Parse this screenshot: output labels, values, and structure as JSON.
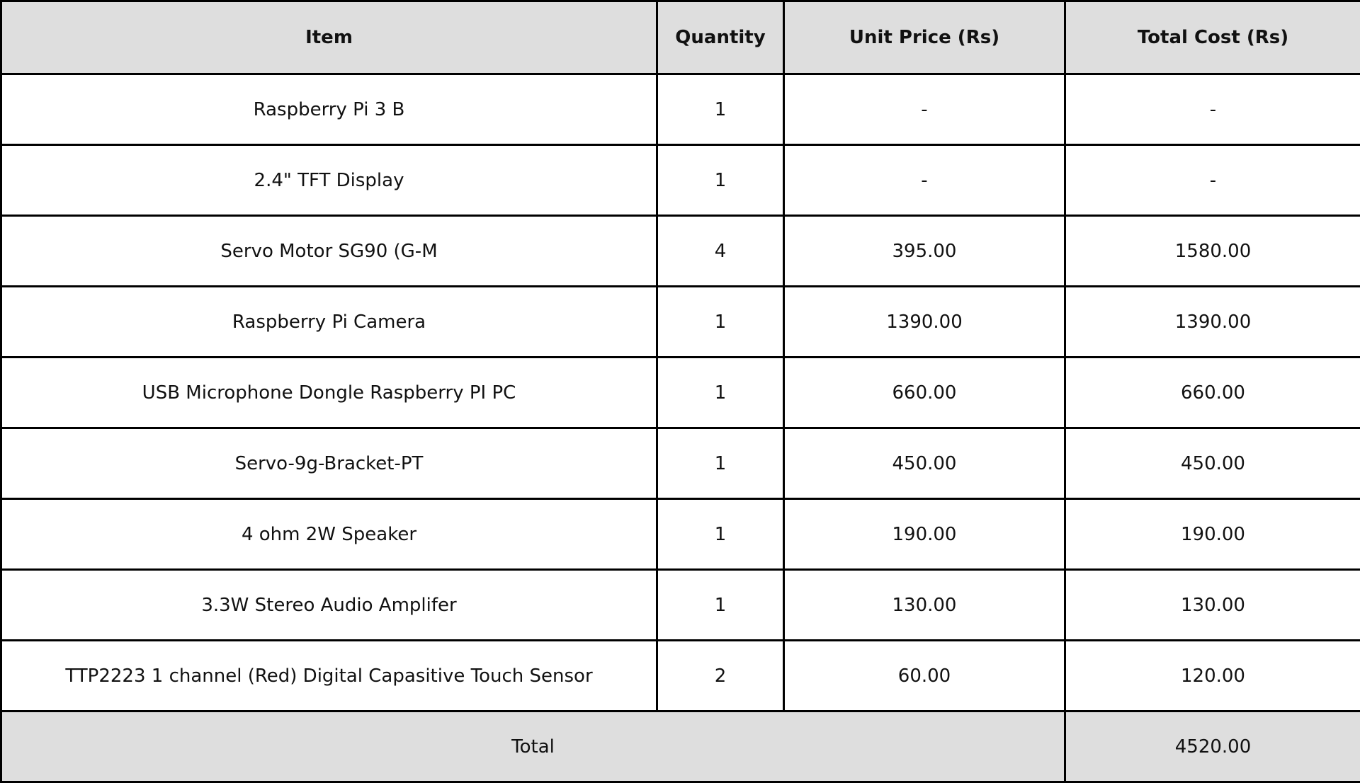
{
  "table": {
    "headers": [
      "Item",
      "Quantity",
      "Unit Price (Rs)",
      "Total Cost (Rs)"
    ],
    "rows": [
      [
        "Raspberry Pi 3 B",
        "1",
        "-",
        "-"
      ],
      [
        "2.4\" TFT Display",
        "1",
        "-",
        "-"
      ],
      [
        "Servo Motor SG90 (G-M",
        "4",
        "395.00",
        "1580.00"
      ],
      [
        "Raspberry Pi Camera",
        "1",
        "1390.00",
        "1390.00"
      ],
      [
        "USB Microphone Dongle Raspberry PI PC",
        "1",
        "660.00",
        "660.00"
      ],
      [
        "Servo-9g-Bracket-PT",
        "1",
        "450.00",
        "450.00"
      ],
      [
        "4 ohm 2W Speaker",
        "1",
        "190.00",
        "190.00"
      ],
      [
        "3.3W Stereo Audio Amplifer",
        "1",
        "130.00",
        "130.00"
      ],
      [
        "TTP2223 1 channel (Red) Digital Capasitive Touch Sensor",
        "2",
        "60.00",
        "120.00"
      ]
    ],
    "footer": {
      "label": "Total",
      "value": "4520.00"
    }
  },
  "colors": {
    "header_background": "#dedede",
    "border": "#000000"
  }
}
